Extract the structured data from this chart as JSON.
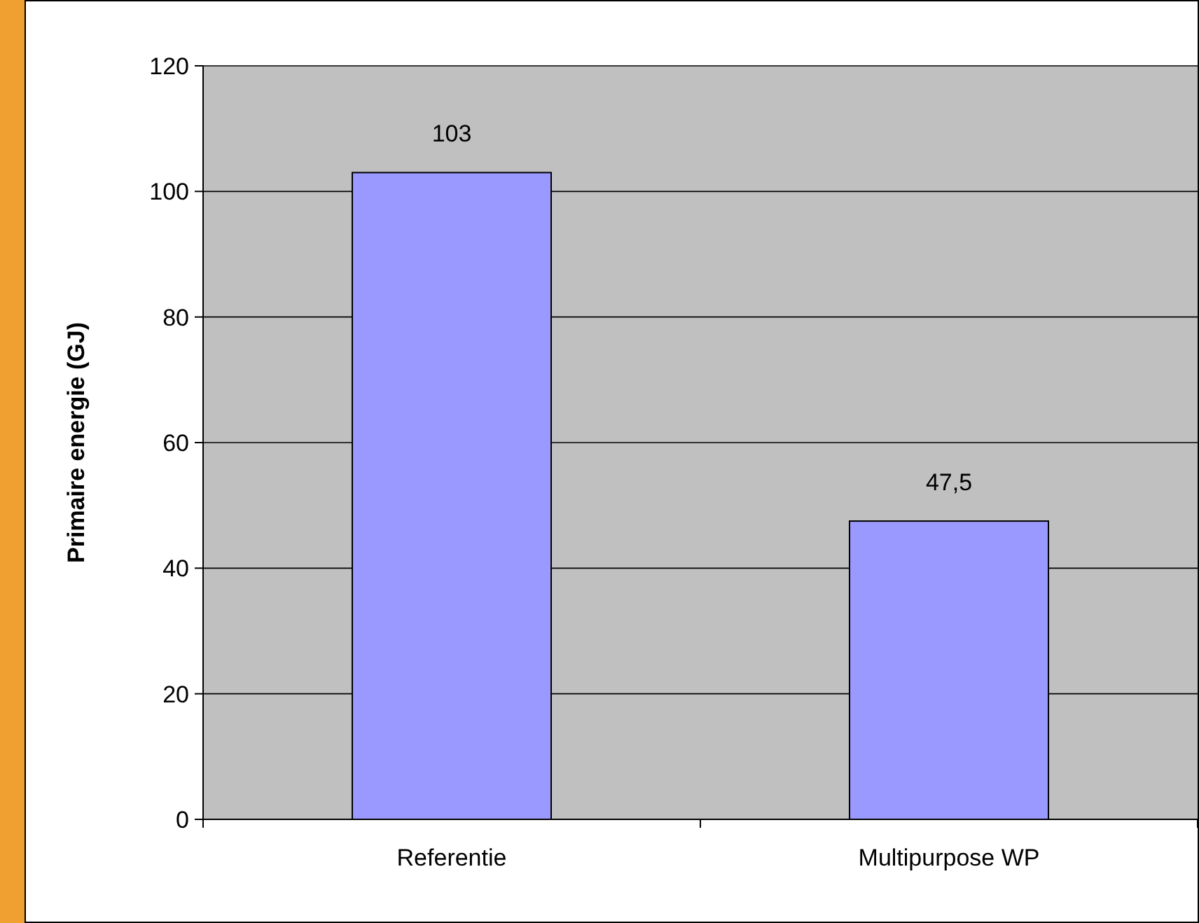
{
  "chart_data": {
    "type": "bar",
    "ylabel": "Primaire energie (GJ)",
    "categories": [
      "Referentie",
      "Multipurpose WP"
    ],
    "values": [
      103,
      47.5
    ],
    "value_labels": [
      "103",
      "47,5"
    ],
    "color": "#9999ff",
    "ylim": [
      0,
      120
    ],
    "yticks": [
      0,
      20,
      40,
      60,
      80,
      100,
      120
    ],
    "grid": "y"
  }
}
